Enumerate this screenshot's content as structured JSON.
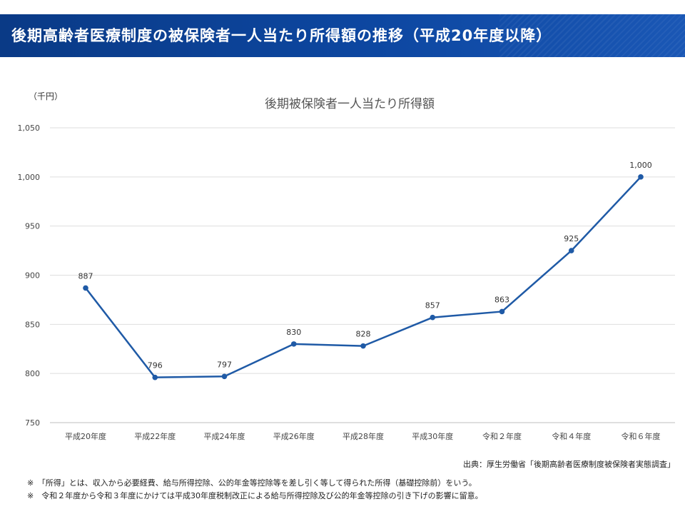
{
  "header": {
    "title": "後期高齢者医療制度の被保険者一人当たり所得額の推移（平成20年度以降）"
  },
  "chart_data": {
    "type": "line",
    "title": "後期被保険者一人当たり所得額",
    "ylabel": "（千円）",
    "xlabel": "",
    "categories": [
      "平成20年度",
      "平成22年度",
      "平成24年度",
      "平成26年度",
      "平成28年度",
      "平成30年度",
      "令和２年度",
      "令和４年度",
      "令和６年度"
    ],
    "series": [
      {
        "values": [
          887,
          796,
          797,
          830,
          828,
          857,
          863,
          925,
          1000
        ],
        "data_labels": [
          "887",
          "796",
          "797",
          "830",
          "828",
          "857",
          "863",
          "925",
          "1,000"
        ]
      }
    ],
    "ylim": [
      750,
      1050
    ],
    "yticks": [
      750,
      800,
      850,
      900,
      950,
      1000,
      1050
    ],
    "ytick_labels": [
      "750",
      "800",
      "850",
      "900",
      "950",
      "1,000",
      "1,050"
    ],
    "grid": true,
    "line_color": "#1f5aa6"
  },
  "source": "出典：厚生労働省「後期高齢者医療制度被保険者実態調査」",
  "notes": [
    "※　「所得」とは、収入から必要経費、給与所得控除、公的年金等控除等を差し引く等して得られた所得（基礎控除前）をいう。",
    "※　令和２年度から令和３年度にかけては平成30年度税制改正による給与所得控除及び公的年金等控除の引き下げの影響に留意。"
  ]
}
